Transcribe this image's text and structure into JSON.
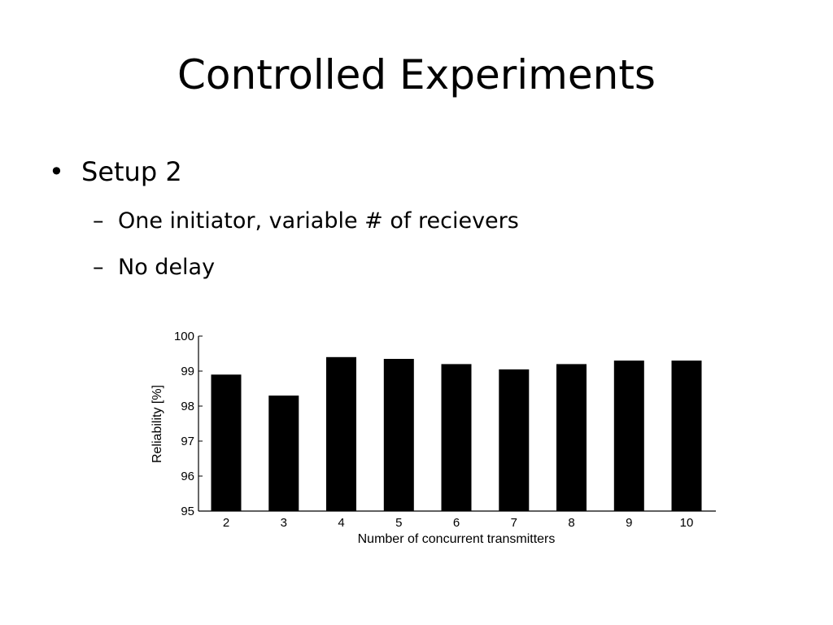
{
  "slide": {
    "title": "Controlled Experiments",
    "bullets": [
      {
        "level": 1,
        "marker": "•",
        "text": "Setup 2"
      },
      {
        "level": 2,
        "marker": "–",
        "text": "One initiator, variable # of recievers"
      },
      {
        "level": 2,
        "marker": "–",
        "text": "No delay"
      }
    ]
  },
  "chart_data": {
    "type": "bar",
    "categories": [
      "2",
      "3",
      "4",
      "5",
      "6",
      "7",
      "8",
      "9",
      "10"
    ],
    "values": [
      98.9,
      98.3,
      99.4,
      99.35,
      99.2,
      99.05,
      99.2,
      99.3,
      99.3
    ],
    "title": "",
    "xlabel": "Number of concurrent transmitters",
    "ylabel": "Reliability [%]",
    "ylim": [
      95,
      100
    ],
    "yticks": [
      95,
      96,
      97,
      98,
      99,
      100
    ],
    "grid": false,
    "bar_color": "#000000"
  }
}
